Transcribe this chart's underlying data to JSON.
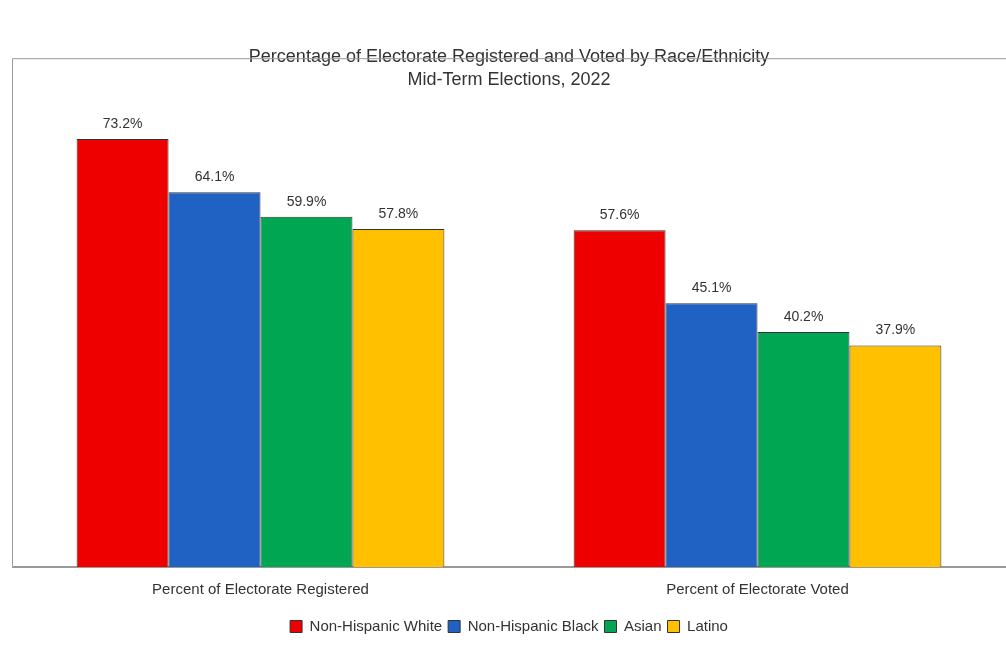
{
  "chart_data": {
    "type": "bar",
    "title": "Percentage of Electorate Registered and Voted by Race/Ethnicity",
    "subtitle": "Mid-Term Elections, 2022",
    "categories": [
      "Percent of Electorate Registered",
      "Percent of Electorate Voted"
    ],
    "series": [
      {
        "name": "Non-Hispanic White",
        "color": "#ee0000",
        "values": [
          73.2,
          57.6
        ],
        "value_labels": [
          "73.2%",
          "57.6%"
        ]
      },
      {
        "name": "Non-Hispanic Black",
        "color": "#1f62c4",
        "values": [
          64.1,
          45.1
        ],
        "value_labels": [
          "64.1%",
          "45.1%"
        ]
      },
      {
        "name": "Asian",
        "color": "#00a651",
        "values": [
          59.9,
          40.2
        ],
        "value_labels": [
          "59.9%",
          "40.2%"
        ]
      },
      {
        "name": "Latino",
        "color": "#ffc000",
        "values": [
          57.8,
          37.9
        ],
        "value_labels": [
          "57.8%",
          "37.9%"
        ]
      }
    ],
    "grid": false,
    "legend": "bottom",
    "tick_labels": "x"
  }
}
